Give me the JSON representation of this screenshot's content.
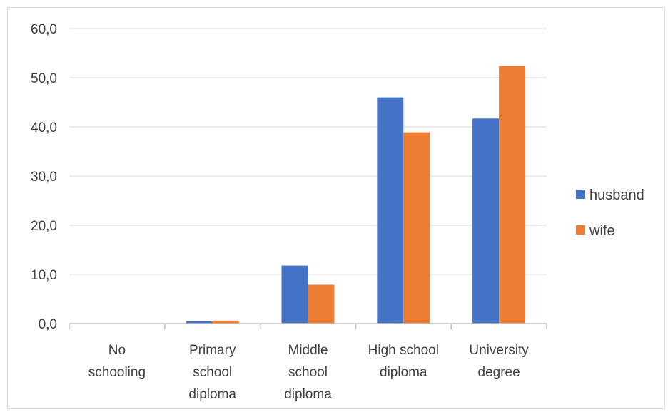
{
  "chart_data": {
    "type": "bar",
    "title": "",
    "xlabel": "",
    "ylabel": "",
    "categories": [
      [
        "No",
        "schooling"
      ],
      [
        "Primary",
        "school",
        "diploma"
      ],
      [
        "Middle",
        "school",
        "diploma"
      ],
      [
        "High school",
        "diploma"
      ],
      [
        "University",
        "degree"
      ]
    ],
    "series": [
      {
        "name": "husband",
        "color": "#4472c4",
        "values": [
          0.0,
          0.5,
          11.8,
          46.0,
          41.7
        ]
      },
      {
        "name": "wife",
        "color": "#ed7d31",
        "values": [
          0.0,
          0.6,
          7.9,
          38.9,
          52.4
        ]
      }
    ],
    "ylim": [
      0,
      60
    ],
    "yticks": [
      "0,0",
      "10,0",
      "20,0",
      "30,0",
      "40,0",
      "50,0",
      "60,0"
    ],
    "grid": true,
    "legend": "right"
  }
}
